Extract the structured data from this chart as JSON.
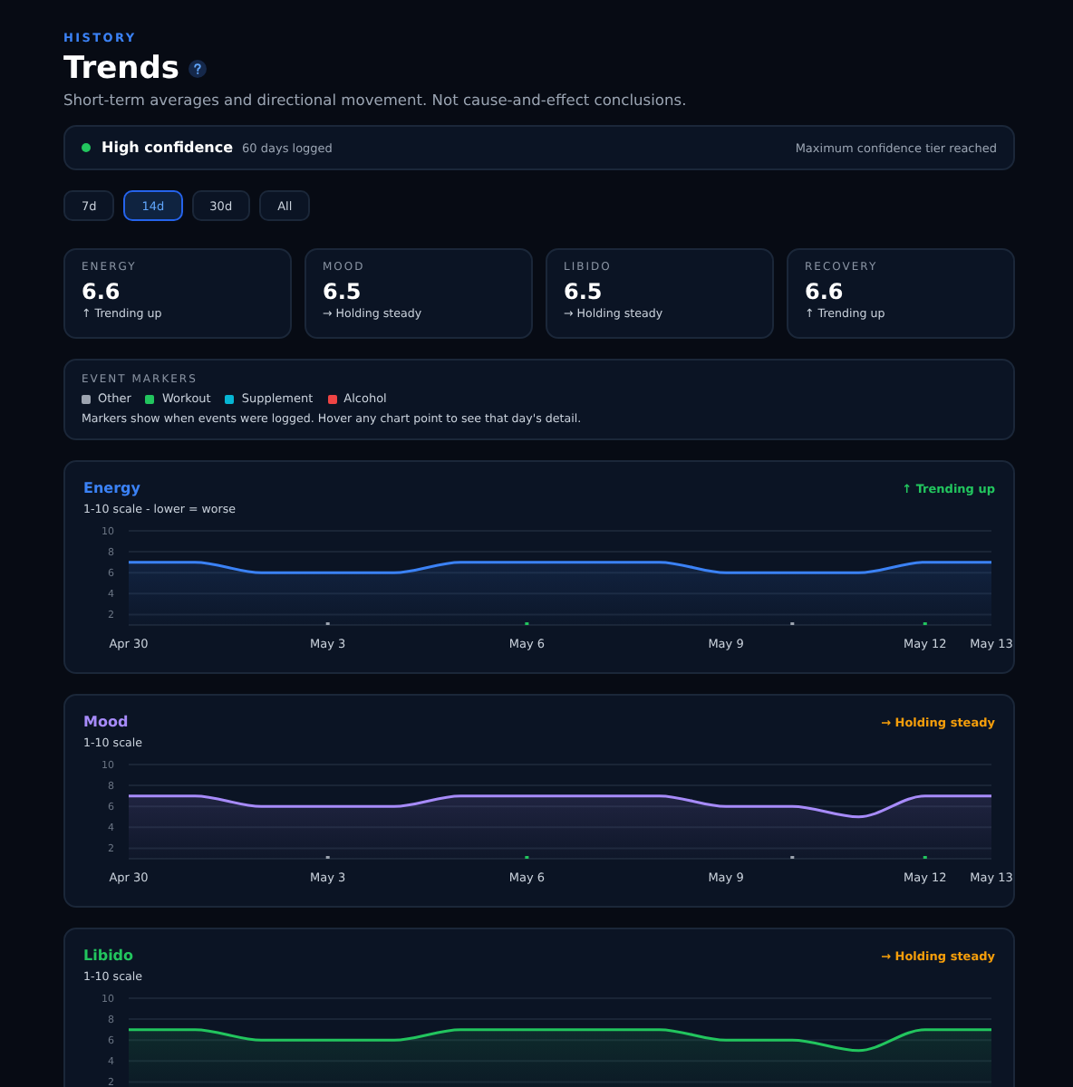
{
  "chart_data": [
    {
      "type": "other",
      "title": "Trends",
      "subtitle": "Short-term averages and directional movement. Not cause-and-effect conclusions.",
      "annotations": [
        "HISTORY",
        "High confidence",
        "60 days logged",
        "Maximum confidence tier reached",
        "7d",
        "14d",
        "30d",
        "All",
        "ENERGY",
        "6.6",
        "↑ Trending up",
        "MOOD",
        "6.5",
        "→ Holding steady",
        "LIBIDO",
        "6.5",
        "→ Holding steady",
        "RECOVERY",
        "6.6",
        "↑ Trending up"
      ]
    },
    {
      "type": "area",
      "title": "Energy",
      "subtitle": "1-10 scale - lower = worse",
      "legend_title": "EVENT MARKERS",
      "legend": "top",
      "annotations": [
        "↑ Trending up",
        "Markers show when events were logged. Hover any chart point to see that day's detail."
      ],
      "categories": [
        "Apr 30",
        null,
        null,
        "May 3",
        null,
        null,
        "May 6",
        null,
        null,
        "May 9",
        null,
        null,
        "May 12",
        "May 13"
      ],
      "ylim": [
        1,
        10
      ],
      "yticks": [
        2,
        4,
        6,
        8,
        10
      ],
      "grid": "y",
      "series": [
        {
          "color": "#3b82f6",
          "values": [
            7,
            7,
            6,
            6,
            6,
            7,
            7,
            7,
            7,
            6,
            6,
            6,
            7,
            7
          ]
        },
        {
          "type": "scatter",
          "name": "Other",
          "color": "#9ca3af",
          "values": [
            null,
            null,
            null,
            1,
            null,
            null,
            null,
            null,
            null,
            null,
            1,
            null,
            null,
            null
          ]
        },
        {
          "type": "scatter",
          "name": "Workout",
          "color": "#22c55e",
          "values": [
            null,
            null,
            null,
            null,
            null,
            null,
            1,
            null,
            null,
            null,
            null,
            null,
            1,
            null
          ]
        },
        {
          "type": "scatter",
          "name": "Supplement",
          "color": "#06b6d4",
          "values": [
            null,
            null,
            null,
            null,
            null,
            null,
            null,
            null,
            null,
            null,
            null,
            null,
            null,
            null
          ]
        },
        {
          "type": "scatter",
          "name": "Alcohol",
          "color": "#ef4444",
          "values": [
            null,
            null,
            null,
            null,
            null,
            null,
            null,
            null,
            null,
            null,
            null,
            null,
            null,
            null
          ]
        }
      ]
    },
    {
      "type": "area",
      "title": "Mood",
      "subtitle": "1-10 scale",
      "annotations": [
        "→ Holding steady"
      ],
      "categories": [
        "Apr 30",
        null,
        null,
        "May 3",
        null,
        null,
        "May 6",
        null,
        null,
        "May 9",
        null,
        null,
        "May 12",
        "May 13"
      ],
      "ylim": [
        1,
        10
      ],
      "yticks": [
        2,
        4,
        6,
        8,
        10
      ],
      "grid": "y",
      "series": [
        {
          "color": "#a78bfa",
          "values": [
            7,
            7,
            6,
            6,
            6,
            7,
            7,
            7,
            7,
            6,
            6,
            5,
            7,
            7
          ]
        },
        {
          "type": "scatter",
          "color": "#9ca3af",
          "values": [
            null,
            null,
            null,
            1,
            null,
            null,
            null,
            null,
            null,
            null,
            1,
            null,
            null,
            null
          ]
        },
        {
          "type": "scatter",
          "color": "#22c55e",
          "values": [
            null,
            null,
            null,
            null,
            null,
            null,
            1,
            null,
            null,
            null,
            null,
            null,
            1,
            null
          ]
        }
      ]
    },
    {
      "type": "area",
      "title": "Libido",
      "subtitle": "1-10 scale",
      "annotations": [
        "→ Holding steady"
      ],
      "tick_labels": "y",
      "categories": [
        null,
        null,
        null,
        null,
        null,
        null,
        null,
        null,
        null,
        null,
        null,
        null,
        null,
        null
      ],
      "ylim": [
        1,
        10
      ],
      "yticks": [
        2,
        4,
        6,
        8,
        10
      ],
      "grid": "y",
      "series": [
        {
          "color": "#22c55e",
          "values": [
            7,
            7,
            6,
            6,
            6,
            7,
            7,
            7,
            7,
            6,
            6,
            5,
            7,
            7
          ]
        }
      ]
    }
  ]
}
